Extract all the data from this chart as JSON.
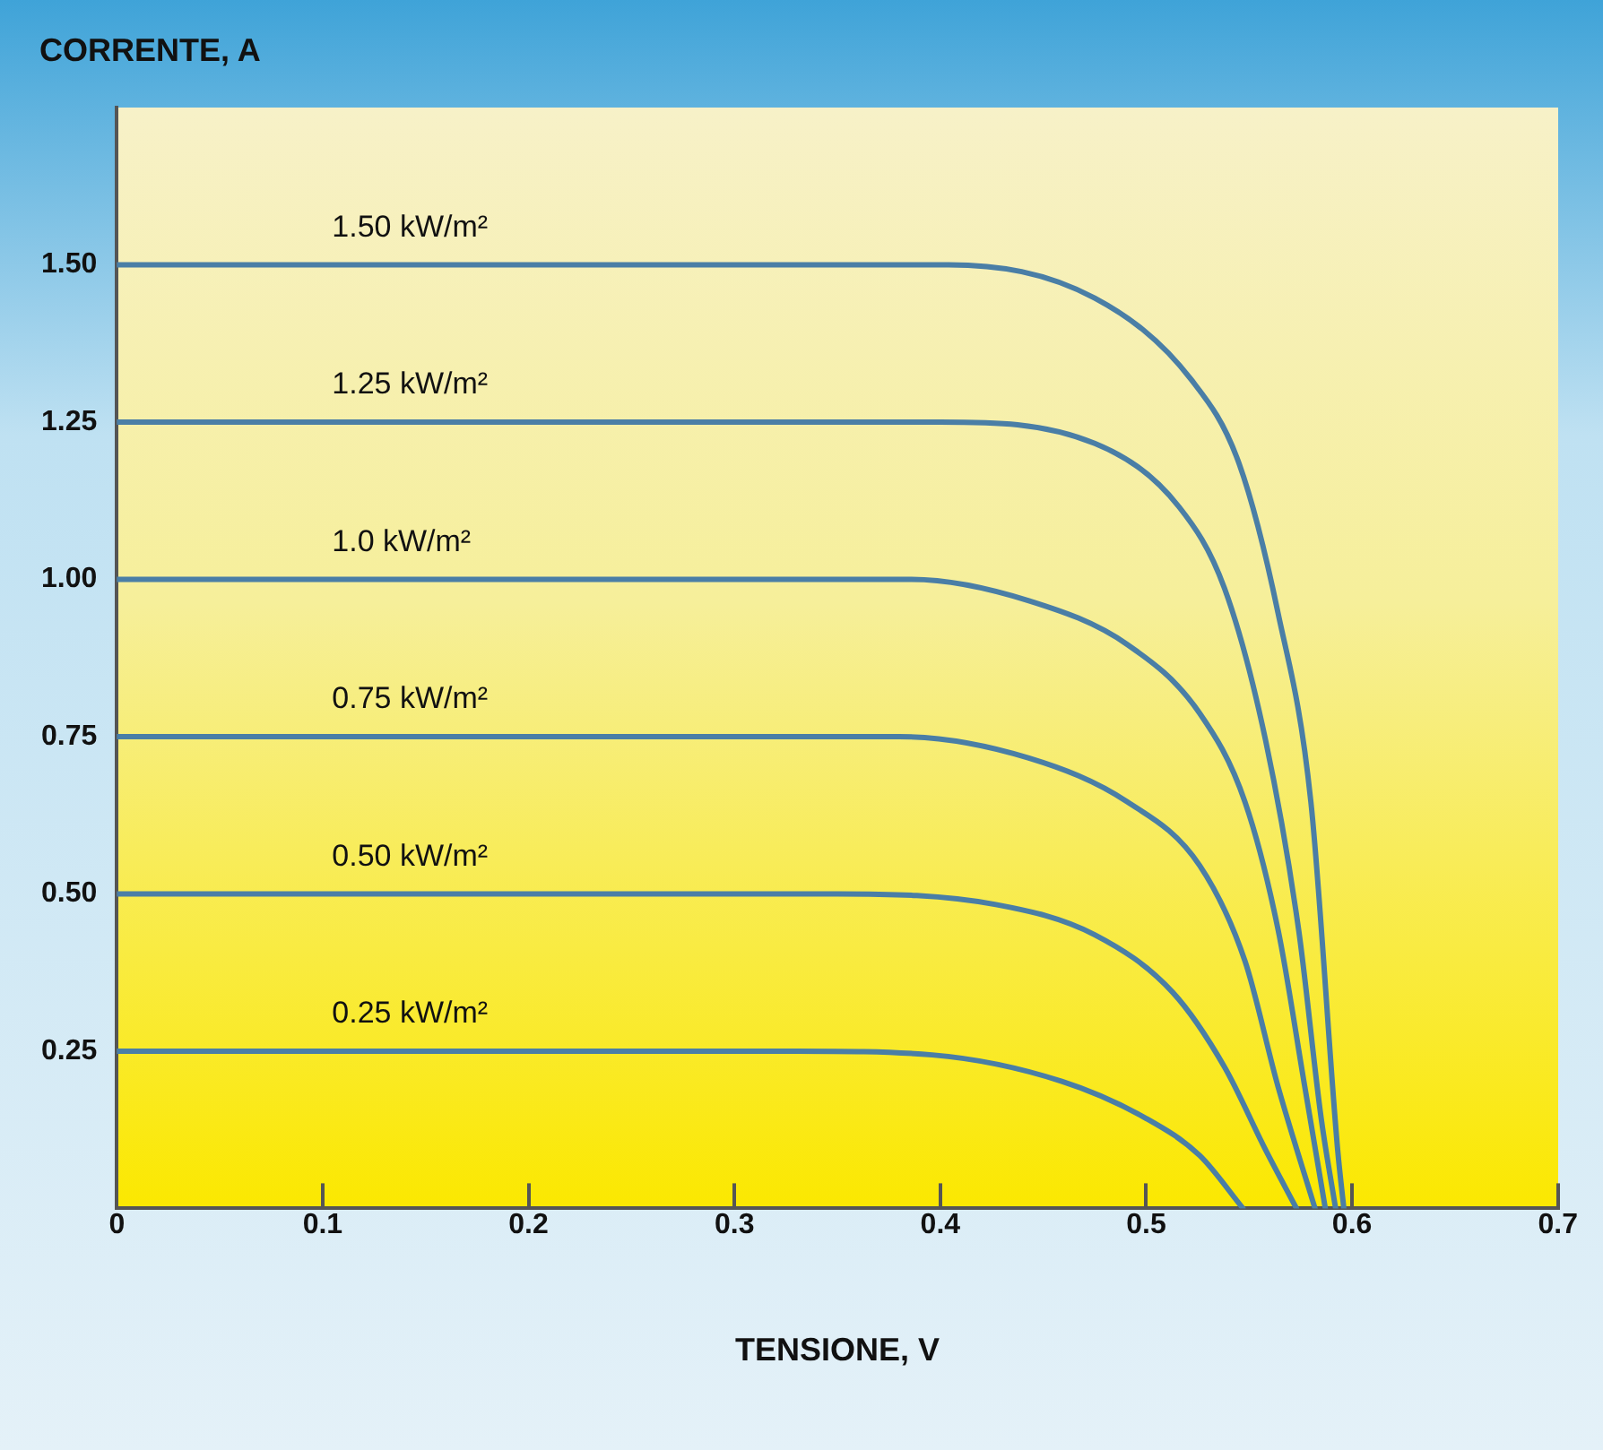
{
  "chart_data": {
    "type": "line",
    "xlabel": "TENSIONE, V",
    "ylabel": "CORRENTE, A",
    "xlim": [
      0,
      0.7
    ],
    "ylim": [
      0,
      1.75
    ],
    "xticks": [
      0,
      0.1,
      0.2,
      0.3,
      0.4,
      0.5,
      0.6,
      0.7
    ],
    "yticks": [
      {
        "value": 0.25,
        "label": "0.25"
      },
      {
        "value": 0.5,
        "label": "0.50"
      },
      {
        "value": 0.75,
        "label": "0.75"
      },
      {
        "value": 1,
        "label": "1.00"
      },
      {
        "value": 1.25,
        "label": "1.25"
      },
      {
        "value": 1.5,
        "label": "1.50"
      }
    ],
    "grid": false,
    "legend": false,
    "marker": "none",
    "line_style": "solid",
    "series": [
      {
        "name": "1.50 kW/m²",
        "color": "#4a7ea6",
        "x": [
          0,
          0.404,
          0.475,
          0.522,
          0.545,
          0.564,
          0.58,
          0.593,
          0.596
        ],
        "values": [
          1.5,
          1.5,
          1.447,
          1.317,
          1.185,
          0.947,
          0.646,
          0.093,
          0
        ]
      },
      {
        "name": "1.25 kW/m²",
        "color": "#4a7ea6",
        "x": [
          0,
          0.4,
          0.475,
          0.516,
          0.538,
          0.558,
          0.574,
          0.585,
          0.592
        ],
        "values": [
          1.25,
          1.25,
          1.216,
          1.115,
          0.986,
          0.744,
          0.444,
          0.143,
          0
        ]
      },
      {
        "name": "1.0 kW/m²",
        "color": "#4a7ea6",
        "x": [
          0,
          0.386,
          0.443,
          0.491,
          0.526,
          0.548,
          0.564,
          0.577,
          0.587
        ],
        "values": [
          1,
          1,
          0.966,
          0.896,
          0.787,
          0.646,
          0.444,
          0.194,
          0
        ]
      },
      {
        "name": "0.75 kW/m²",
        "color": "#4a7ea6",
        "x": [
          0,
          0.38,
          0.443,
          0.491,
          0.526,
          0.548,
          0.564,
          0.582
        ],
        "values": [
          0.75,
          0.75,
          0.716,
          0.646,
          0.545,
          0.393,
          0.194,
          0
        ]
      },
      {
        "name": "0.50 kW/m²",
        "color": "#4a7ea6",
        "x": [
          0,
          0.35,
          0.427,
          0.475,
          0.513,
          0.538,
          0.558,
          0.573
        ],
        "values": [
          0.5,
          0.5,
          0.483,
          0.435,
          0.343,
          0.225,
          0.093,
          0
        ]
      },
      {
        "name": "0.25 kW/m²",
        "color": "#4a7ea6",
        "x": [
          0,
          0.33,
          0.396,
          0.459,
          0.5,
          0.526,
          0.547
        ],
        "values": [
          0.25,
          0.25,
          0.244,
          0.202,
          0.143,
          0.084,
          0
        ]
      }
    ]
  }
}
